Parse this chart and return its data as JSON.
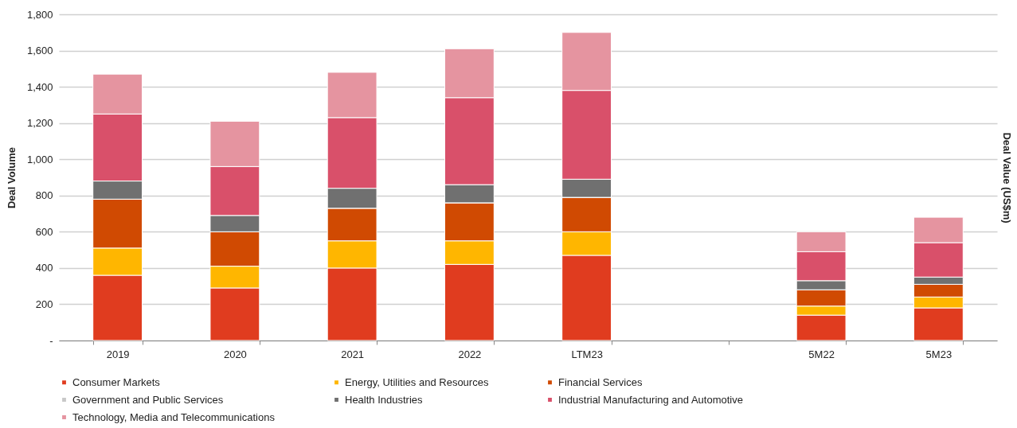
{
  "chart_data": {
    "type": "bar",
    "stacked": true,
    "ylabel": "Deal Volume",
    "y2label": "Deal Value (US$m)",
    "categories": [
      "2019",
      "2020",
      "2021",
      "2022",
      "LTM23",
      null,
      "5M22",
      "5M23"
    ],
    "ylim": [
      0,
      1800
    ],
    "yticks": [
      {
        "value": 0,
        "label": "-"
      },
      {
        "value": 200,
        "label": "200"
      },
      {
        "value": 400,
        "label": "400"
      },
      {
        "value": 600,
        "label": "600"
      },
      {
        "value": 800,
        "label": "800"
      },
      {
        "value": 1000,
        "label": "1,000"
      },
      {
        "value": 1200,
        "label": "1,200"
      },
      {
        "value": 1400,
        "label": "1,400"
      },
      {
        "value": 1600,
        "label": "1,600"
      },
      {
        "value": 1800,
        "label": "1,800"
      }
    ],
    "grid": "y",
    "legend": "bottom",
    "series": [
      {
        "name": "Consumer Markets",
        "color": "#e03c1f",
        "values": [
          360,
          290,
          400,
          420,
          470,
          null,
          140,
          180
        ]
      },
      {
        "name": "Energy, Utilities and Resources",
        "color": "#ffb600",
        "values": [
          150,
          120,
          150,
          130,
          130,
          null,
          50,
          60
        ]
      },
      {
        "name": "Financial Services",
        "color": "#d04a02",
        "values": [
          270,
          190,
          180,
          210,
          190,
          null,
          90,
          70
        ]
      },
      {
        "name": "Government and Public Services",
        "color": "#c8c8c8",
        "values": [
          0,
          0,
          0,
          0,
          0,
          null,
          0,
          0
        ]
      },
      {
        "name": "Health Industries",
        "color": "#707070",
        "values": [
          100,
          90,
          110,
          100,
          100,
          null,
          50,
          40
        ]
      },
      {
        "name": "Industrial Manufacturing and Automotive",
        "color": "#d9506a",
        "values": [
          370,
          270,
          390,
          480,
          490,
          null,
          160,
          190
        ]
      },
      {
        "name": "Technology, Media and Telecommunications",
        "color": "#e594a0",
        "values": [
          220,
          250,
          250,
          270,
          320,
          null,
          110,
          140
        ]
      }
    ]
  }
}
